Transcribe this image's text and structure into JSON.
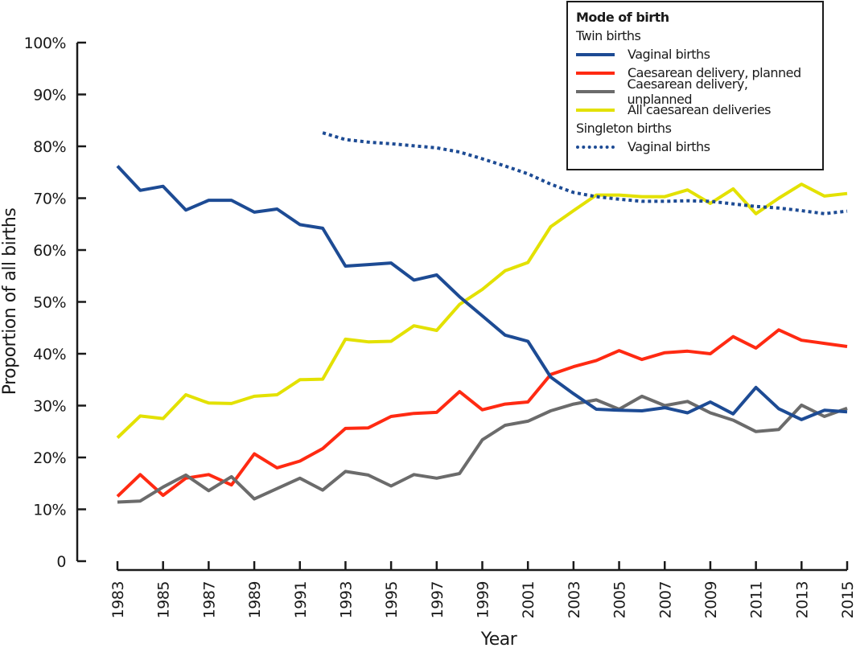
{
  "chart_data": {
    "type": "line",
    "title": "",
    "xlabel": "Year",
    "ylabel": "Proportion of all births",
    "xlim": [
      1983,
      2015
    ],
    "ylim": [
      0,
      100
    ],
    "grid": false,
    "x_ticks": [
      "1983",
      "1985",
      "1987",
      "1989",
      "1991",
      "1993",
      "1995",
      "1997",
      "1999",
      "2001",
      "2003",
      "2005",
      "2007",
      "2009",
      "2011",
      "2013",
      "2015"
    ],
    "y_ticks": [
      {
        "value": 0,
        "label": "0"
      },
      {
        "value": 10,
        "label": "10%"
      },
      {
        "value": 20,
        "label": "20%"
      },
      {
        "value": 30,
        "label": "30%"
      },
      {
        "value": 40,
        "label": "40%"
      },
      {
        "value": 50,
        "label": "50%"
      },
      {
        "value": 60,
        "label": "60%"
      },
      {
        "value": 70,
        "label": "70%"
      },
      {
        "value": 80,
        "label": "80%"
      },
      {
        "value": 90,
        "label": "90%"
      },
      {
        "value": 100,
        "label": "100%"
      }
    ],
    "legend": {
      "position": "top-right",
      "title": "Mode of birth",
      "groups": [
        {
          "label": "Twin births",
          "entries": [
            0,
            1,
            2,
            3
          ]
        },
        {
          "label": "Singleton births",
          "entries": [
            4
          ]
        }
      ]
    },
    "series": [
      {
        "name": "Vaginal births",
        "group": "Twin births",
        "color": "#1d4b94",
        "style": "solid",
        "x": [
          1983,
          1984,
          1985,
          1986,
          1987,
          1988,
          1989,
          1990,
          1991,
          1992,
          1993,
          1994,
          1995,
          1996,
          1997,
          1998,
          1999,
          2000,
          2001,
          2002,
          2003,
          2004,
          2005,
          2006,
          2007,
          2008,
          2009,
          2010,
          2011,
          2012,
          2013,
          2014,
          2015
        ],
        "values": [
          76.2,
          71.5,
          72.3,
          67.7,
          69.6,
          69.6,
          67.3,
          67.9,
          64.9,
          64.2,
          56.9,
          57.2,
          57.5,
          54.2,
          55.2,
          51.0,
          47.3,
          43.6,
          42.4,
          35.5,
          32.3,
          29.3,
          29.1,
          29.0,
          29.6,
          28.6,
          30.7,
          28.4,
          33.5,
          29.4,
          27.3,
          29.1,
          28.8
        ]
      },
      {
        "name": "Caesarean delivery, planned",
        "group": "Twin births",
        "color": "#ff2a12",
        "style": "solid",
        "x": [
          1983,
          1984,
          1985,
          1986,
          1987,
          1988,
          1989,
          1990,
          1991,
          1992,
          1993,
          1994,
          1995,
          1996,
          1997,
          1998,
          1999,
          2000,
          2001,
          2002,
          2003,
          2004,
          2005,
          2006,
          2007,
          2008,
          2009,
          2010,
          2011,
          2012,
          2013,
          2014,
          2015
        ],
        "values": [
          12.5,
          16.7,
          12.7,
          16.0,
          16.7,
          14.7,
          20.7,
          18.0,
          19.3,
          21.7,
          25.6,
          25.7,
          27.9,
          28.5,
          28.7,
          32.7,
          29.2,
          30.3,
          30.7,
          36.0,
          37.5,
          38.7,
          40.6,
          38.9,
          40.2,
          40.5,
          40.0,
          43.3,
          41.1,
          44.6,
          42.6,
          42.0,
          41.4
        ]
      },
      {
        "name": "Caesarean delivery, unplanned",
        "group": "Twin births",
        "color": "#6b6b6b",
        "style": "solid",
        "x": [
          1983,
          1984,
          1985,
          1986,
          1987,
          1988,
          1989,
          1990,
          1991,
          1992,
          1993,
          1994,
          1995,
          1996,
          1997,
          1998,
          1999,
          2000,
          2001,
          2002,
          2003,
          2004,
          2005,
          2006,
          2007,
          2008,
          2009,
          2010,
          2011,
          2012,
          2013,
          2014,
          2015
        ],
        "values": [
          11.4,
          11.6,
          14.3,
          16.6,
          13.6,
          16.3,
          12.0,
          14.0,
          16.0,
          13.7,
          17.3,
          16.6,
          14.5,
          16.7,
          16.0,
          16.9,
          23.4,
          26.2,
          27.0,
          29.0,
          30.3,
          31.1,
          29.3,
          31.8,
          30.0,
          30.8,
          28.6,
          27.2,
          25.0,
          25.4,
          30.1,
          27.9,
          29.5
        ]
      },
      {
        "name": "All caesarean deliveries",
        "group": "Twin births",
        "color": "#e3e100",
        "style": "solid",
        "x": [
          1983,
          1984,
          1985,
          1986,
          1987,
          1988,
          1989,
          1990,
          1991,
          1992,
          1993,
          1994,
          1995,
          1996,
          1997,
          1998,
          1999,
          2000,
          2001,
          2002,
          2003,
          2004,
          2005,
          2006,
          2007,
          2008,
          2009,
          2010,
          2011,
          2012,
          2013,
          2014,
          2015
        ],
        "values": [
          23.8,
          28.0,
          27.5,
          32.1,
          30.5,
          30.4,
          31.8,
          32.1,
          35.0,
          35.1,
          42.8,
          42.3,
          42.4,
          45.4,
          44.5,
          49.5,
          52.4,
          56.0,
          57.6,
          64.5,
          67.6,
          70.6,
          70.6,
          70.3,
          70.3,
          71.6,
          69.0,
          71.8,
          67.0,
          70.0,
          72.7,
          70.4,
          70.9
        ]
      },
      {
        "name": "Vaginal births",
        "group": "Singleton births",
        "color": "#1d4b94",
        "style": "dotted",
        "x": [
          1992,
          1993,
          1994,
          1995,
          1996,
          1997,
          1998,
          1999,
          2000,
          2001,
          2002,
          2003,
          2004,
          2005,
          2006,
          2007,
          2008,
          2009,
          2010,
          2011,
          2012,
          2013,
          2014,
          2015
        ],
        "values": [
          82.6,
          81.3,
          80.8,
          80.5,
          80.1,
          79.7,
          78.9,
          77.6,
          76.2,
          74.7,
          72.7,
          71.1,
          70.3,
          69.8,
          69.4,
          69.4,
          69.5,
          69.4,
          68.9,
          68.4,
          68.1,
          67.6,
          67.0,
          67.5
        ]
      }
    ]
  }
}
